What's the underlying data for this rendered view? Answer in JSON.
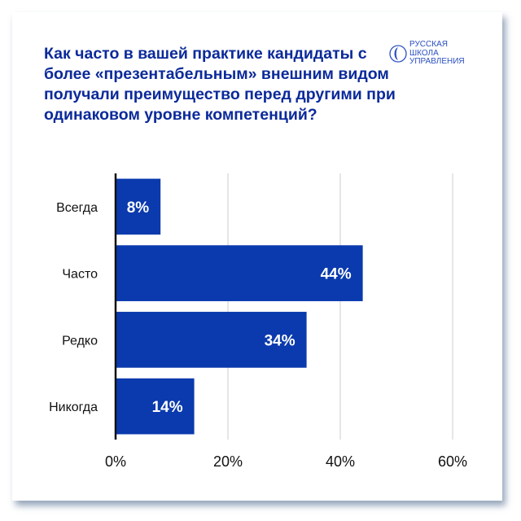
{
  "title": "Как часто в вашей практике кандидаты с более «презентабельным» внешним видом получали преимущество перед другими при одинаковом уровне компетенций?",
  "logo": {
    "lines": [
      "РУССКАЯ",
      "ШКОЛА",
      "УПРАВЛЕНИЯ"
    ]
  },
  "colors": {
    "bar": "#0a3aad",
    "title": "#0b2a9a",
    "grid": "#cccccc"
  },
  "chart_data": {
    "type": "bar",
    "orientation": "horizontal",
    "categories": [
      "Всегда",
      "Часто",
      "Редко",
      "Никогда"
    ],
    "values": [
      8,
      44,
      34,
      14
    ],
    "data_labels": [
      "8%",
      "44%",
      "34%",
      "14%"
    ],
    "xlim": [
      0,
      60
    ],
    "xticks": [
      0,
      20,
      40,
      60
    ],
    "xtick_labels": [
      "0%",
      "20%",
      "40%",
      "60%"
    ],
    "grid": true
  }
}
